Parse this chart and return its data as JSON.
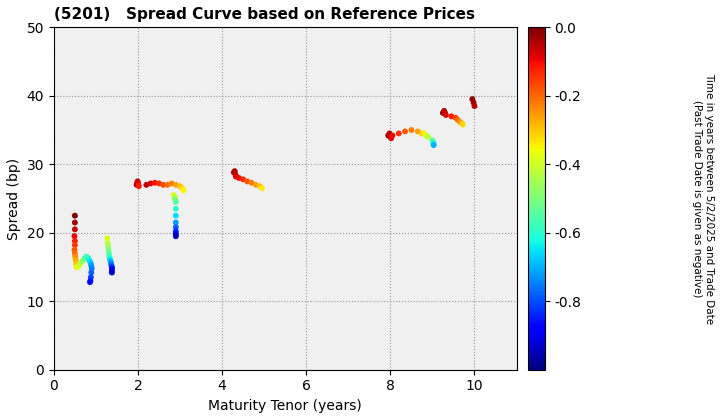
{
  "title": "(5201)   Spread Curve based on Reference Prices",
  "xlabel": "Maturity Tenor (years)",
  "ylabel": "Spread (bp)",
  "colorbar_label": "Time in years between 5/2/2025 and Trade Date\n(Past Trade Date is given as negative)",
  "xlim": [
    0,
    11
  ],
  "ylim": [
    0,
    50
  ],
  "xticks": [
    0,
    2,
    4,
    6,
    8,
    10
  ],
  "yticks": [
    0,
    10,
    20,
    30,
    40,
    50
  ],
  "cmap": "jet",
  "vmin": -1.0,
  "vmax": 0.0,
  "bg_color": "#f0f0f0",
  "point_size": 18,
  "clusters": [
    {
      "points": [
        [
          0.5,
          22.5,
          0.0
        ],
        [
          0.5,
          21.5,
          -0.03
        ],
        [
          0.5,
          20.5,
          -0.06
        ],
        [
          0.49,
          19.5,
          -0.09
        ],
        [
          0.5,
          18.8,
          -0.12
        ],
        [
          0.5,
          18.2,
          -0.15
        ],
        [
          0.49,
          17.5,
          -0.18
        ],
        [
          0.5,
          17.0,
          -0.21
        ],
        [
          0.51,
          16.5,
          -0.24
        ],
        [
          0.52,
          16.0,
          -0.27
        ],
        [
          0.53,
          15.5,
          -0.3
        ],
        [
          0.54,
          15.0,
          -0.33
        ],
        [
          0.56,
          15.0,
          -0.36
        ],
        [
          0.6,
          15.2,
          -0.39
        ],
        [
          0.63,
          15.5,
          -0.42
        ],
        [
          0.67,
          15.8,
          -0.45
        ],
        [
          0.7,
          16.0,
          -0.48
        ],
        [
          0.73,
          16.3,
          -0.51
        ],
        [
          0.76,
          16.5,
          -0.54
        ],
        [
          0.79,
          16.5,
          -0.57
        ],
        [
          0.82,
          16.3,
          -0.6
        ],
        [
          0.84,
          16.0,
          -0.63
        ],
        [
          0.86,
          15.8,
          -0.66
        ],
        [
          0.88,
          15.5,
          -0.69
        ],
        [
          0.89,
          15.2,
          -0.72
        ],
        [
          0.9,
          14.8,
          -0.75
        ],
        [
          0.89,
          14.2,
          -0.78
        ],
        [
          0.88,
          13.5,
          -0.81
        ],
        [
          0.87,
          13.0,
          -0.84
        ],
        [
          0.86,
          12.8,
          -0.87
        ]
      ]
    },
    {
      "points": [
        [
          1.27,
          19.2,
          -0.38
        ],
        [
          1.28,
          18.5,
          -0.42
        ],
        [
          1.29,
          18.0,
          -0.46
        ],
        [
          1.3,
          17.5,
          -0.5
        ],
        [
          1.31,
          17.0,
          -0.54
        ],
        [
          1.32,
          16.5,
          -0.58
        ],
        [
          1.33,
          16.2,
          -0.62
        ],
        [
          1.34,
          16.0,
          -0.66
        ],
        [
          1.35,
          15.8,
          -0.7
        ],
        [
          1.36,
          15.5,
          -0.74
        ],
        [
          1.37,
          15.2,
          -0.78
        ],
        [
          1.38,
          15.0,
          -0.82
        ],
        [
          1.38,
          14.8,
          -0.86
        ],
        [
          1.38,
          14.5,
          -0.9
        ],
        [
          1.38,
          14.2,
          -0.94
        ]
      ]
    },
    {
      "points": [
        [
          1.97,
          27.0,
          -0.02
        ],
        [
          1.98,
          27.2,
          -0.04
        ],
        [
          1.99,
          27.5,
          -0.06
        ],
        [
          2.0,
          27.3,
          -0.08
        ],
        [
          2.01,
          27.0,
          -0.1
        ],
        [
          2.02,
          26.8,
          -0.12
        ]
      ]
    },
    {
      "points": [
        [
          2.2,
          27.0,
          -0.05
        ],
        [
          2.3,
          27.2,
          -0.08
        ],
        [
          2.4,
          27.3,
          -0.11
        ],
        [
          2.5,
          27.2,
          -0.14
        ],
        [
          2.6,
          27.0,
          -0.17
        ],
        [
          2.7,
          27.0,
          -0.2
        ],
        [
          2.8,
          27.2,
          -0.23
        ],
        [
          2.9,
          27.0,
          -0.26
        ],
        [
          3.0,
          26.8,
          -0.29
        ],
        [
          3.05,
          26.5,
          -0.32
        ],
        [
          3.08,
          26.2,
          -0.35
        ]
      ]
    },
    {
      "points": [
        [
          2.85,
          25.5,
          -0.38
        ],
        [
          2.87,
          25.2,
          -0.42
        ],
        [
          2.88,
          25.0,
          -0.46
        ],
        [
          2.89,
          24.8,
          -0.5
        ],
        [
          2.9,
          24.5,
          -0.54
        ],
        [
          2.9,
          23.5,
          -0.6
        ],
        [
          2.9,
          22.5,
          -0.66
        ],
        [
          2.9,
          21.5,
          -0.72
        ],
        [
          2.9,
          20.8,
          -0.78
        ],
        [
          2.9,
          20.2,
          -0.84
        ],
        [
          2.9,
          19.8,
          -0.9
        ],
        [
          2.9,
          19.5,
          -0.95
        ]
      ]
    },
    {
      "points": [
        [
          4.28,
          28.8,
          -0.02
        ],
        [
          4.3,
          29.0,
          -0.04
        ],
        [
          4.32,
          28.5,
          -0.06
        ],
        [
          4.33,
          28.2,
          -0.08
        ]
      ]
    },
    {
      "points": [
        [
          4.4,
          28.0,
          -0.1
        ],
        [
          4.5,
          27.8,
          -0.14
        ],
        [
          4.6,
          27.5,
          -0.18
        ],
        [
          4.7,
          27.3,
          -0.22
        ],
        [
          4.8,
          27.0,
          -0.26
        ],
        [
          4.9,
          26.8,
          -0.3
        ],
        [
          4.95,
          26.5,
          -0.34
        ]
      ]
    },
    {
      "points": [
        [
          7.95,
          34.2,
          -0.02
        ],
        [
          7.98,
          34.5,
          -0.04
        ],
        [
          8.0,
          34.0,
          -0.06
        ],
        [
          8.02,
          33.8,
          -0.08
        ],
        [
          8.05,
          34.2,
          -0.1
        ]
      ]
    },
    {
      "points": [
        [
          8.2,
          34.5,
          -0.14
        ],
        [
          8.35,
          34.8,
          -0.18
        ],
        [
          8.5,
          35.0,
          -0.22
        ],
        [
          8.65,
          34.8,
          -0.26
        ],
        [
          8.75,
          34.5,
          -0.3
        ]
      ]
    },
    {
      "points": [
        [
          8.8,
          34.5,
          -0.34
        ],
        [
          8.85,
          34.2,
          -0.38
        ],
        [
          8.9,
          34.0,
          -0.42
        ]
      ]
    },
    {
      "points": [
        [
          9.0,
          33.5,
          -0.52
        ],
        [
          9.02,
          33.2,
          -0.58
        ],
        [
          9.03,
          33.0,
          -0.64
        ],
        [
          9.03,
          32.8,
          -0.7
        ]
      ]
    },
    {
      "points": [
        [
          9.25,
          37.5,
          -0.02
        ],
        [
          9.28,
          37.8,
          -0.04
        ],
        [
          9.3,
          37.5,
          -0.06
        ],
        [
          9.32,
          37.2,
          -0.08
        ]
      ]
    },
    {
      "points": [
        [
          9.45,
          37.0,
          -0.12
        ],
        [
          9.55,
          36.8,
          -0.16
        ],
        [
          9.6,
          36.5,
          -0.2
        ],
        [
          9.65,
          36.2,
          -0.24
        ],
        [
          9.7,
          36.0,
          -0.28
        ],
        [
          9.72,
          35.8,
          -0.32
        ]
      ]
    },
    {
      "points": [
        [
          9.95,
          39.5,
          -0.01
        ],
        [
          9.98,
          39.0,
          -0.03
        ],
        [
          10.0,
          38.5,
          -0.05
        ]
      ]
    }
  ]
}
